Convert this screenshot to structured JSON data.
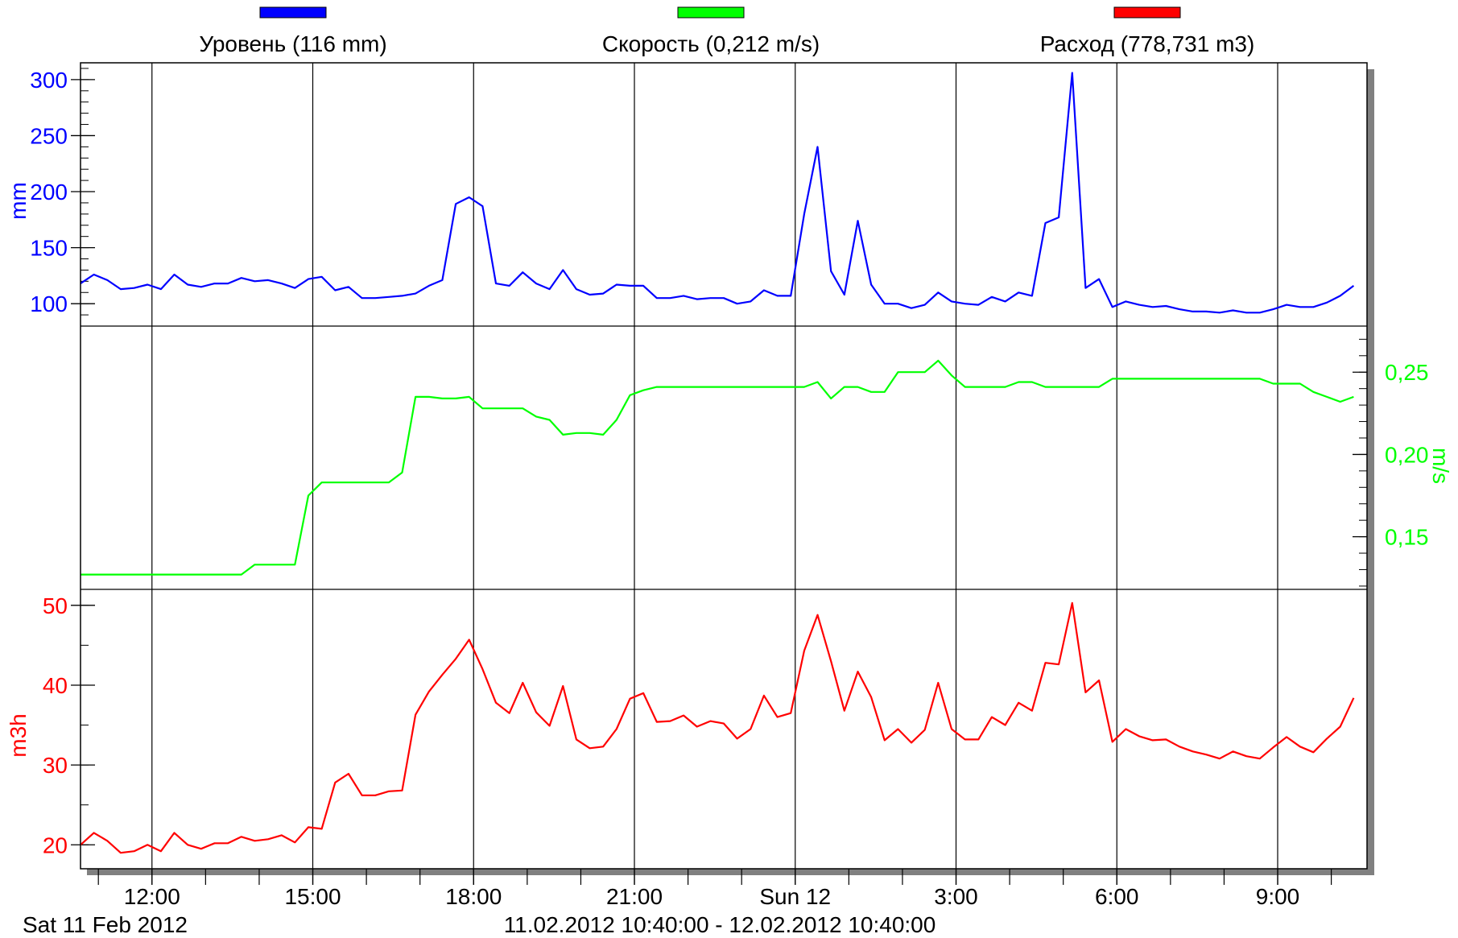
{
  "legend": [
    {
      "label": "Уровень (116 mm)",
      "color": "#0000ff"
    },
    {
      "label": "Скорость (0,212 m/s)",
      "color": "#00ff00"
    },
    {
      "label": "Расход (778,731 m3)",
      "color": "#ff0000"
    }
  ],
  "footer": {
    "date_label": "Sat 11 Feb 2012",
    "range_label": "11.02.2012 10:40:00 - 12.02.2012 10:40:00"
  },
  "chart_data": {
    "type": "line",
    "grid": true,
    "x_axis": {
      "unit": "hours since 10:40 on 11 Feb 2012",
      "range": [
        0,
        24
      ],
      "ticks": [
        {
          "x": 1.333,
          "label": "12:00"
        },
        {
          "x": 4.333,
          "label": "15:00"
        },
        {
          "x": 7.333,
          "label": "18:00"
        },
        {
          "x": 10.333,
          "label": "21:00"
        },
        {
          "x": 13.333,
          "label": "Sun 12"
        },
        {
          "x": 16.333,
          "label": "3:00"
        },
        {
          "x": 19.333,
          "label": "6:00"
        },
        {
          "x": 22.333,
          "label": "9:00"
        }
      ]
    },
    "panels": [
      {
        "name": "level",
        "ylabel": "mm",
        "axis_side": "left",
        "color": "#0000ff",
        "ylim": [
          80,
          315
        ],
        "ticks": [
          {
            "v": 100,
            "label": "100"
          },
          {
            "v": 150,
            "label": "150"
          },
          {
            "v": 200,
            "label": "200"
          },
          {
            "v": 250,
            "label": "250"
          },
          {
            "v": 300,
            "label": "300"
          }
        ],
        "minor_step": 10,
        "series": {
          "name": "Уровень",
          "x": [
            0,
            0.25,
            0.5,
            0.75,
            1,
            1.25,
            1.5,
            1.75,
            2,
            2.25,
            2.5,
            2.75,
            3,
            3.25,
            3.5,
            3.75,
            4,
            4.25,
            4.5,
            4.75,
            5,
            5.25,
            5.5,
            5.75,
            6,
            6.25,
            6.5,
            6.75,
            7,
            7.25,
            7.5,
            7.75,
            8,
            8.25,
            8.5,
            8.75,
            9,
            9.25,
            9.5,
            9.75,
            10,
            10.25,
            10.5,
            10.75,
            11,
            11.25,
            11.5,
            11.75,
            12,
            12.25,
            12.5,
            12.75,
            13,
            13.25,
            13.5,
            13.75,
            14,
            14.25,
            14.5,
            14.75,
            15,
            15.25,
            15.5,
            15.75,
            16,
            16.25,
            16.5,
            16.75,
            17,
            17.25,
            17.5,
            17.75,
            18,
            18.25,
            18.5,
            18.75,
            19,
            19.25,
            19.5,
            19.75,
            20,
            20.25,
            20.5,
            20.75,
            21,
            21.25,
            21.5,
            21.75,
            22,
            22.25,
            22.5,
            22.75,
            23,
            23.25,
            23.5,
            23.75
          ],
          "y": [
            118,
            126,
            121,
            113,
            114,
            117,
            113,
            126,
            117,
            115,
            118,
            118,
            123,
            120,
            121,
            118,
            114,
            122,
            124,
            112,
            115,
            105,
            105,
            106,
            107,
            109,
            116,
            121,
            189,
            195,
            187,
            118,
            116,
            128,
            118,
            113,
            130,
            113,
            108,
            109,
            117,
            116,
            116,
            105,
            105,
            107,
            104,
            105,
            105,
            100,
            102,
            112,
            107,
            107,
            180,
            240,
            129,
            108,
            174,
            117,
            100,
            100,
            96,
            99,
            110,
            102,
            100,
            99,
            106,
            102,
            110,
            107,
            172,
            177,
            306,
            114,
            122,
            97,
            102,
            99,
            97,
            98,
            95,
            93,
            93,
            92,
            94,
            92,
            92,
            95,
            99,
            97,
            97,
            101,
            107,
            116
          ]
        }
      },
      {
        "name": "velocity",
        "ylabel": "m/s",
        "axis_side": "right",
        "color": "#00ff00",
        "ylim": [
          0.118,
          0.278
        ],
        "ticks": [
          {
            "v": 0.15,
            "label": "0,15"
          },
          {
            "v": 0.2,
            "label": "0,20"
          },
          {
            "v": 0.25,
            "label": "0,25"
          }
        ],
        "minor_step": 0.01,
        "series": {
          "name": "Скорость",
          "x": [
            0,
            3,
            3.25,
            3.5,
            4,
            4.25,
            4.5,
            4.75,
            5,
            5.25,
            5.5,
            5.75,
            6,
            6.25,
            6.5,
            6.75,
            7,
            7.25,
            7.5,
            7.75,
            8,
            8.25,
            8.5,
            8.75,
            9,
            9.25,
            9.5,
            9.75,
            10,
            10.25,
            10.5,
            10.75,
            11,
            11.25,
            11.5,
            11.75,
            12,
            12.25,
            12.5,
            12.75,
            13,
            13.25,
            13.5,
            13.75,
            14,
            14.25,
            14.5,
            14.75,
            15,
            15.25,
            15.5,
            15.75,
            16,
            16.25,
            16.5,
            16.75,
            17,
            17.25,
            17.5,
            17.75,
            18,
            18.25,
            18.5,
            18.75,
            19,
            19.25,
            20,
            21,
            22,
            22.25,
            22.5,
            22.75,
            23,
            23.25,
            23.5,
            23.75
          ],
          "y": [
            0.127,
            0.127,
            0.133,
            0.133,
            0.133,
            0.175,
            0.183,
            0.183,
            0.183,
            0.183,
            0.183,
            0.183,
            0.189,
            0.235,
            0.235,
            0.234,
            0.234,
            0.235,
            0.228,
            0.228,
            0.228,
            0.228,
            0.223,
            0.221,
            0.212,
            0.213,
            0.213,
            0.212,
            0.221,
            0.236,
            0.239,
            0.241,
            0.241,
            0.241,
            0.241,
            0.241,
            0.241,
            0.241,
            0.241,
            0.241,
            0.241,
            0.241,
            0.241,
            0.244,
            0.234,
            0.241,
            0.241,
            0.238,
            0.238,
            0.25,
            0.25,
            0.25,
            0.257,
            0.248,
            0.241,
            0.241,
            0.241,
            0.241,
            0.244,
            0.244,
            0.241,
            0.241,
            0.241,
            0.241,
            0.241,
            0.246,
            0.246,
            0.246,
            0.246,
            0.243,
            0.243,
            0.243,
            0.238,
            0.235,
            0.232,
            0.235
          ]
        }
      },
      {
        "name": "flow",
        "ylabel": "m3h",
        "axis_side": "left",
        "color": "#ff0000",
        "ylim": [
          17,
          52
        ],
        "ticks": [
          {
            "v": 20,
            "label": "20"
          },
          {
            "v": 30,
            "label": "30"
          },
          {
            "v": 40,
            "label": "40"
          },
          {
            "v": 50,
            "label": "50"
          }
        ],
        "minor_step": 5,
        "series": {
          "name": "Расход",
          "x": [
            0,
            0.25,
            0.5,
            0.75,
            1,
            1.25,
            1.5,
            1.75,
            2,
            2.25,
            2.5,
            2.75,
            3,
            3.25,
            3.5,
            3.75,
            4,
            4.25,
            4.5,
            4.75,
            5,
            5.25,
            5.5,
            5.75,
            6,
            6.25,
            6.5,
            6.75,
            7,
            7.25,
            7.5,
            7.75,
            8,
            8.25,
            8.5,
            8.75,
            9,
            9.25,
            9.5,
            9.75,
            10,
            10.25,
            10.5,
            10.75,
            11,
            11.25,
            11.5,
            11.75,
            12,
            12.25,
            12.5,
            12.75,
            13,
            13.25,
            13.5,
            13.75,
            14,
            14.25,
            14.5,
            14.75,
            15,
            15.25,
            15.5,
            15.75,
            16,
            16.25,
            16.5,
            16.75,
            17,
            17.25,
            17.5,
            17.75,
            18,
            18.25,
            18.5,
            18.75,
            19,
            19.25,
            19.5,
            19.75,
            20,
            20.25,
            20.5,
            20.75,
            21,
            21.25,
            21.5,
            21.75,
            22,
            22.25,
            22.5,
            22.75,
            23,
            23.25,
            23.5,
            23.75
          ],
          "y": [
            20,
            21.5,
            20.5,
            19,
            19.2,
            20,
            19.2,
            21.5,
            20,
            19.5,
            20.2,
            20.2,
            21,
            20.5,
            20.7,
            21.2,
            20.3,
            22.2,
            22,
            27.8,
            28.9,
            26.2,
            26.2,
            26.7,
            26.8,
            36.3,
            39.2,
            41.3,
            43.3,
            45.7,
            42,
            37.8,
            36.5,
            40.3,
            36.6,
            34.9,
            39.9,
            33.2,
            32.1,
            32.3,
            34.5,
            38.3,
            39,
            35.4,
            35.5,
            36.2,
            34.8,
            35.5,
            35.2,
            33.3,
            34.5,
            38.7,
            36,
            36.5,
            44.3,
            48.8,
            43,
            36.8,
            41.7,
            38.5,
            33.1,
            34.5,
            32.8,
            34.4,
            40.3,
            34.5,
            33.2,
            33.2,
            36,
            35,
            37.8,
            36.8,
            42.8,
            42.6,
            50.3,
            39.1,
            40.6,
            32.9,
            34.5,
            33.6,
            33.1,
            33.2,
            32.3,
            31.7,
            31.3,
            30.8,
            31.7,
            31.1,
            30.8,
            32.2,
            33.5,
            32.3,
            31.6,
            33.3,
            34.8,
            38.4
          ]
        }
      }
    ]
  }
}
